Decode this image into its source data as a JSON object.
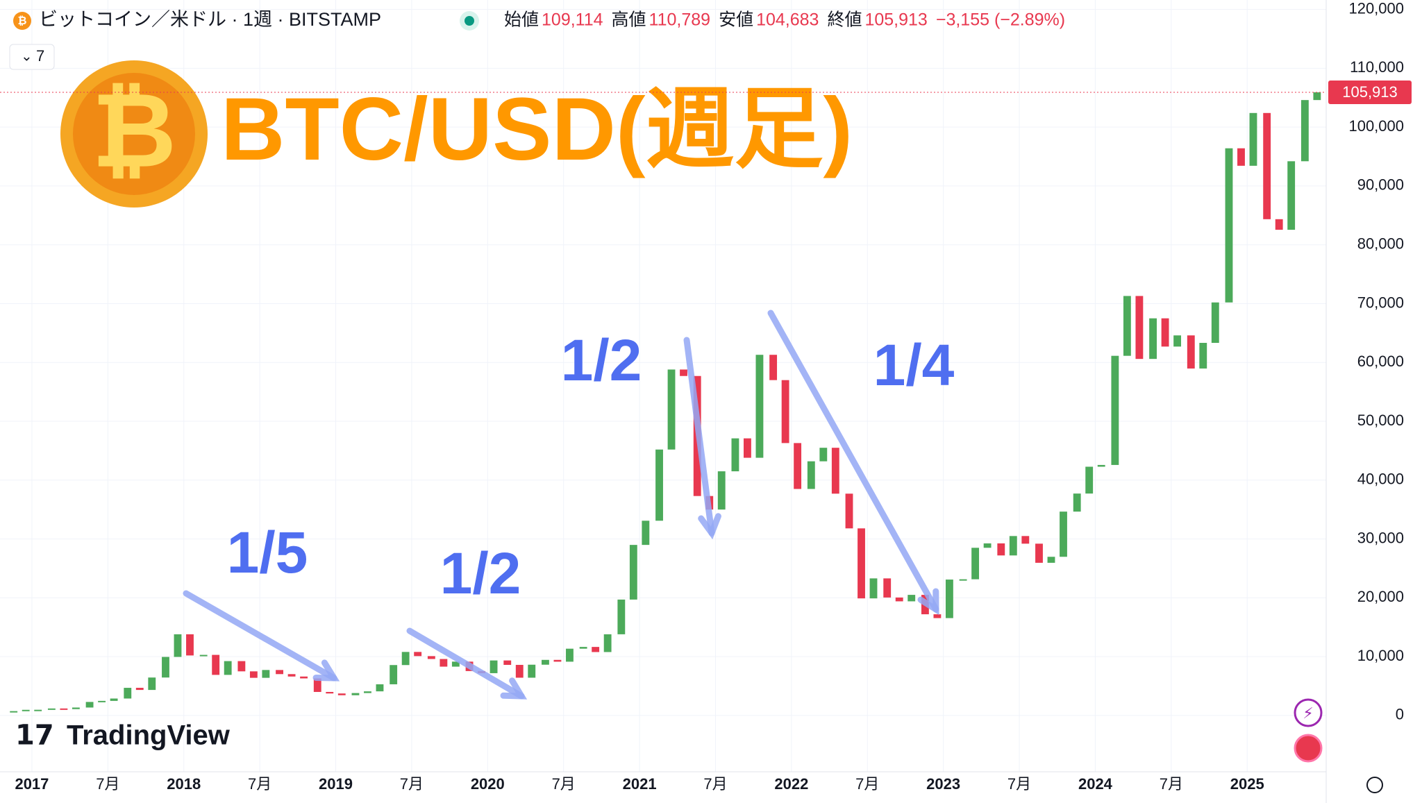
{
  "chart_data": {
    "type": "candlestick",
    "symbol": "ビットコイン／米ドル · 1週 · BITSTAMP",
    "ohlc_header": [
      {
        "label": "始値",
        "value": "109,114"
      },
      {
        "label": "高値",
        "value": "110,789"
      },
      {
        "label": "安値",
        "value": "104,683"
      },
      {
        "label": "終値",
        "value": "105,913"
      }
    ],
    "change": "−3,155 (−2.89%)",
    "interval_button": "7",
    "title": "BTC/USD(週足)",
    "annotations": [
      "1/5",
      "1/2",
      "1/2",
      "1/4"
    ],
    "brand": "TradingView",
    "last_price": {
      "value": 105913,
      "label": "105,913"
    },
    "xlim": [
      2016.79,
      2025.52
    ],
    "xticks": [
      {
        "value": 2017,
        "label": "2017"
      },
      {
        "value": 2017.5,
        "label": "7月"
      },
      {
        "value": 2018,
        "label": "2018"
      },
      {
        "value": 2018.5,
        "label": "7月"
      },
      {
        "value": 2019,
        "label": "2019"
      },
      {
        "value": 2019.5,
        "label": "7月"
      },
      {
        "value": 2020,
        "label": "2020"
      },
      {
        "value": 2020.5,
        "label": "7月"
      },
      {
        "value": 2021,
        "label": "2021"
      },
      {
        "value": 2021.5,
        "label": "7月"
      },
      {
        "value": 2022,
        "label": "2022"
      },
      {
        "value": 2022.5,
        "label": "7月"
      },
      {
        "value": 2023,
        "label": "2023"
      },
      {
        "value": 2023.5,
        "label": "7月"
      },
      {
        "value": 2024,
        "label": "2024"
      },
      {
        "value": 2024.5,
        "label": "7月"
      },
      {
        "value": 2025,
        "label": "2025"
      }
    ],
    "ylim": [
      -9568,
      121605
    ],
    "yticks": [
      0,
      {
        "value": 10000,
        "label": "10,000"
      },
      {
        "value": 20000,
        "label": "20,000"
      },
      {
        "value": 30000,
        "label": "30,000"
      },
      {
        "value": 40000,
        "label": "40,000"
      },
      {
        "value": 50000,
        "label": "50,000"
      },
      {
        "value": 60000,
        "label": "60,000"
      },
      {
        "value": 70000,
        "label": "70,000"
      },
      {
        "value": 80000,
        "label": "80,000"
      },
      {
        "value": 90000,
        "label": "90,000"
      },
      {
        "value": 100000,
        "label": "100,000"
      },
      {
        "value": 110000,
        "label": "110,000"
      },
      {
        "value": 120000,
        "label": "120,000"
      }
    ],
    "grid": true,
    "up_color": "#4caa5a",
    "down_color": "#e8384f",
    "x": [
      2016.88,
      2016.96,
      2017.04,
      2017.13,
      2017.21,
      2017.29,
      2017.38,
      2017.46,
      2017.54,
      2017.63,
      2017.71,
      2017.79,
      2017.88,
      2017.96,
      2018.04,
      2018.13,
      2018.21,
      2018.29,
      2018.38,
      2018.46,
      2018.54,
      2018.63,
      2018.71,
      2018.79,
      2018.88,
      2018.96,
      2019.04,
      2019.13,
      2019.21,
      2019.29,
      2019.38,
      2019.46,
      2019.54,
      2019.63,
      2019.71,
      2019.79,
      2019.88,
      2019.96,
      2020.04,
      2020.13,
      2020.21,
      2020.29,
      2020.38,
      2020.46,
      2020.54,
      2020.63,
      2020.71,
      2020.79,
      2020.88,
      2020.96,
      2021.04,
      2021.13,
      2021.21,
      2021.29,
      2021.38,
      2021.46,
      2021.54,
      2021.63,
      2021.71,
      2021.79,
      2021.88,
      2021.96,
      2022.04,
      2022.13,
      2022.21,
      2022.29,
      2022.38,
      2022.46,
      2022.54,
      2022.63,
      2022.71,
      2022.79,
      2022.88,
      2022.96,
      2023.04,
      2023.13,
      2023.21,
      2023.29,
      2023.38,
      2023.46,
      2023.54,
      2023.63,
      2023.71,
      2023.79,
      2023.88,
      2023.96,
      2024.04,
      2024.13,
      2024.21,
      2024.29,
      2024.38,
      2024.46,
      2024.54,
      2024.63,
      2024.71,
      2024.79,
      2024.88,
      2024.96,
      2025.04,
      2025.13,
      2025.21,
      2025.29,
      2025.38,
      2025.46
    ],
    "series": [
      {
        "name": "BTC/USD",
        "values": [
          740,
          960,
          970,
          1190,
          1080,
          1350,
          2300,
          2480,
          2880,
          4700,
          4340,
          6450,
          9950,
          13800,
          10200,
          10300,
          6900,
          9240,
          7500,
          6400,
          7730,
          7030,
          6620,
          6300,
          4000,
          3740,
          3440,
          3810,
          4100,
          5300,
          8570,
          10800,
          10090,
          9600,
          8300,
          9150,
          7550,
          7190,
          9350,
          8600,
          6420,
          8630,
          9450,
          9140,
          11350,
          11650,
          10780,
          13800,
          19700,
          28990,
          33100,
          45200,
          58800,
          57700,
          37300,
          35000,
          41500,
          47100,
          43800,
          61300,
          57000,
          46300,
          38500,
          43200,
          45500,
          37700,
          31800,
          19900,
          23300,
          20050,
          19400,
          20500,
          17200,
          16550,
          23100,
          23150,
          28500,
          29250,
          27200,
          30500,
          29200,
          25950,
          26970,
          34650,
          37720,
          42280,
          42580,
          61130,
          71300,
          60600,
          67500,
          62700,
          64600,
          58970,
          63330,
          70200,
          96400,
          93430,
          102400,
          84350,
          82550,
          94200,
          104600,
          105913
        ]
      }
    ]
  }
}
